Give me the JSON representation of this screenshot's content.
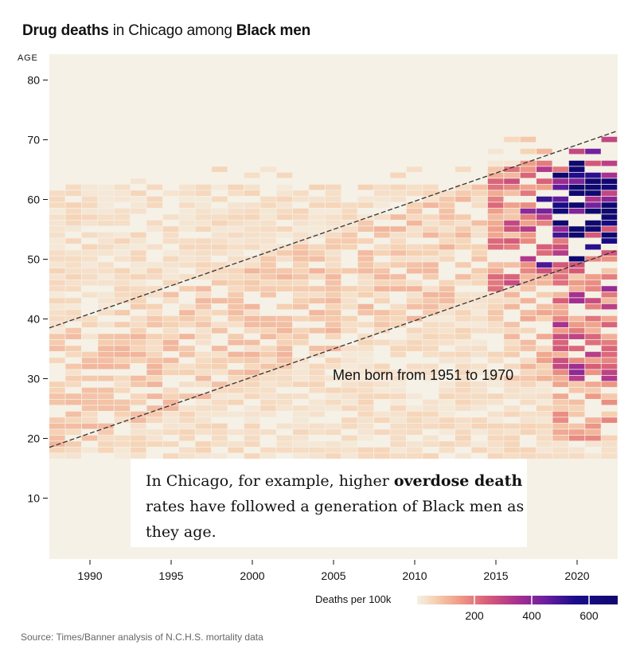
{
  "title": {
    "part1": "Drug deaths",
    "part2": " in Chicago among ",
    "part3": "Black men"
  },
  "annotations": {
    "cohort_label": "Men born from 1951 to 1970",
    "callout_1": "In Chicago, for example, higher ",
    "callout_bold": "overdose death",
    "callout_2": " rates have followed a generation of Black men as they age."
  },
  "legend": {
    "title": "Deaths per 100k",
    "ticks": [
      "200",
      "400",
      "600"
    ],
    "tick_values": [
      200,
      400,
      600
    ],
    "max": 700
  },
  "source": "Source: Times/Banner analysis of N.C.H.S. mortality data",
  "chart_data": {
    "type": "heatmap",
    "title": "Drug deaths in Chicago among Black men",
    "ylabel": "AGE",
    "xlabel": "",
    "x_range": [
      1988,
      2022
    ],
    "y_range": [
      0,
      84
    ],
    "x_ticks": [
      1990,
      1995,
      2000,
      2005,
      2010,
      2015,
      2020
    ],
    "y_ticks": [
      10,
      20,
      30,
      40,
      50,
      60,
      70,
      80
    ],
    "color_scale": {
      "label": "Deaths per 100k",
      "stops": [
        {
          "value": 0,
          "color": "#f5f1e6"
        },
        {
          "value": 60,
          "color": "#f6d2b4"
        },
        {
          "value": 150,
          "color": "#ef9a86"
        },
        {
          "value": 250,
          "color": "#d65a78"
        },
        {
          "value": 350,
          "color": "#a8308f"
        },
        {
          "value": 450,
          "color": "#6a1ea0"
        },
        {
          "value": 550,
          "color": "#1a0c8a"
        },
        {
          "value": 700,
          "color": "#100870"
        }
      ]
    },
    "cohort_band": {
      "label": "Men born from 1951 to 1970",
      "upper_line": [
        [
          1988,
          38.5
        ],
        [
          2022,
          71.5
        ]
      ],
      "lower_line": [
        [
          1988,
          18.5
        ],
        [
          2022,
          51.5
        ]
      ]
    },
    "regions": [
      {
        "years": [
          1988,
          2006
        ],
        "ages": [
          17,
          62
        ],
        "approx_rate": 60
      },
      {
        "years": [
          2007,
          2014
        ],
        "ages": [
          20,
          66
        ],
        "approx_rate": 70
      },
      {
        "years": [
          2015,
          2016
        ],
        "ages": [
          30,
          68
        ],
        "approx_rate": 170
      },
      {
        "years": [
          2017,
          2018
        ],
        "ages": [
          35,
          68
        ],
        "approx_rate": 300
      },
      {
        "years": [
          2019,
          2022
        ],
        "ages": [
          45,
          66
        ],
        "approx_rate": 500
      },
      {
        "years": [
          2020,
          2022
        ],
        "ages": [
          50,
          62
        ],
        "approx_rate": 650
      }
    ]
  }
}
